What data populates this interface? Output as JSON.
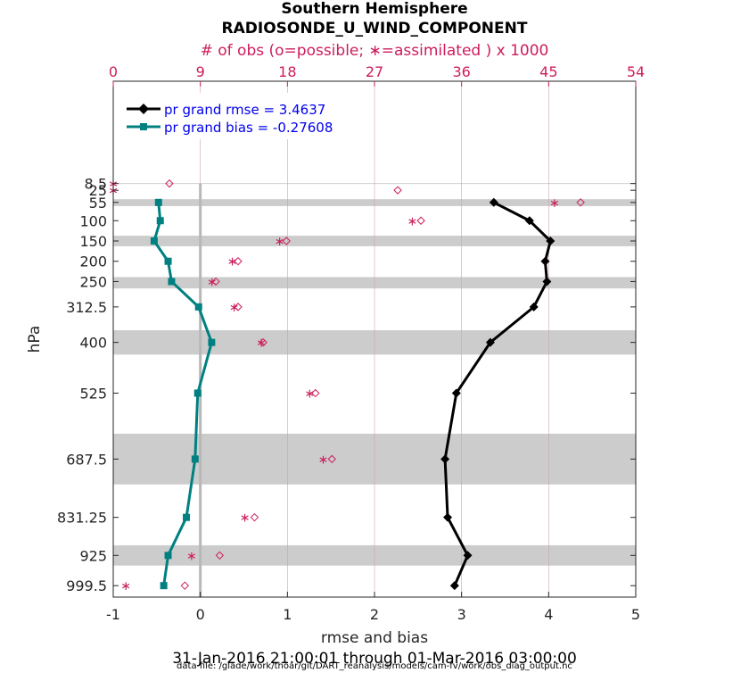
{
  "title": "Southern Hemisphere",
  "subtitle": "RADIOSONDE_U_WIND_COMPONENT",
  "top_axis_label": "# of obs (o=possible; ∗=assimilated ) x 1000",
  "xlabel": "rmse and bias",
  "ylabel": "hPa",
  "date_range": "31-Jan-2016 21:00:01 through 01-Mar-2016 03:00:00",
  "data_file": "data file: /glade/work/thoar/git/DART_reanalysis/models/cam-fv/work/obs_diag_output.nc",
  "colors": {
    "rmse": "#000000",
    "bias": "#008080",
    "obs": "#cc1d5c",
    "band": "#cccccc",
    "zero": "#b8b8b8"
  },
  "chart_data": {
    "type": "line",
    "xlim": [
      -1,
      5
    ],
    "xticks": [
      "-1",
      "0",
      "1",
      "2",
      "3",
      "4",
      "5"
    ],
    "top_xlim": [
      0,
      54
    ],
    "top_xticks": [
      "0",
      "9",
      "18",
      "27",
      "36",
      "45",
      "54"
    ],
    "levels": [
      8.5,
      25,
      55,
      100,
      150,
      200,
      250,
      312.5,
      400,
      525,
      687.5,
      831.25,
      925,
      999.5
    ],
    "level_labels": [
      "8.5",
      "25",
      "55",
      "100",
      "150",
      "200",
      "250",
      "312.5",
      "400",
      "525",
      "687.5",
      "831.25",
      "925",
      "999.5"
    ],
    "shaded_bands": [
      [
        7.5,
        9.5
      ],
      [
        47,
        64
      ],
      [
        137,
        163
      ],
      [
        239,
        267
      ],
      [
        370,
        430
      ],
      [
        625,
        750
      ],
      [
        900,
        950
      ]
    ],
    "series": [
      {
        "name": "pr grand rmse = 3.4637",
        "marker": "diamond",
        "levels": [
          55,
          100,
          150,
          200,
          250,
          312.5,
          400,
          525,
          687.5,
          831.25,
          925,
          999.5
        ],
        "values": [
          3.37,
          3.78,
          4.02,
          3.96,
          3.98,
          3.83,
          3.33,
          2.94,
          2.81,
          2.84,
          3.07,
          2.92
        ]
      },
      {
        "name": "pr grand bias = -0.27608",
        "marker": "square",
        "levels": [
          55,
          100,
          150,
          200,
          250,
          312.5,
          400,
          525,
          687.5,
          831.25,
          925,
          999.5
        ],
        "values": [
          -0.48,
          -0.46,
          -0.53,
          -0.37,
          -0.33,
          -0.02,
          0.13,
          -0.03,
          -0.06,
          -0.16,
          -0.37,
          -0.42
        ]
      }
    ],
    "obs_possible": {
      "levels": [
        8.5,
        25,
        55,
        100,
        150,
        200,
        250,
        312.5,
        400,
        525,
        687.5,
        831.25,
        925,
        999.5
      ],
      "values": [
        5.8,
        29.4,
        48.3,
        31.8,
        17.9,
        12.9,
        10.6,
        12.9,
        15.5,
        20.9,
        22.6,
        14.6,
        11.0,
        7.4
      ]
    },
    "obs_assimilated": {
      "levels": [
        8.5,
        25,
        55,
        100,
        150,
        200,
        250,
        312.5,
        400,
        525,
        687.5,
        831.25,
        925,
        999.5
      ],
      "values": [
        0.0,
        0.0,
        45.6,
        30.9,
        17.2,
        12.3,
        10.2,
        12.5,
        15.3,
        20.3,
        21.7,
        13.6,
        8.1,
        1.3
      ]
    },
    "legend": "top-left",
    "grid": true
  }
}
